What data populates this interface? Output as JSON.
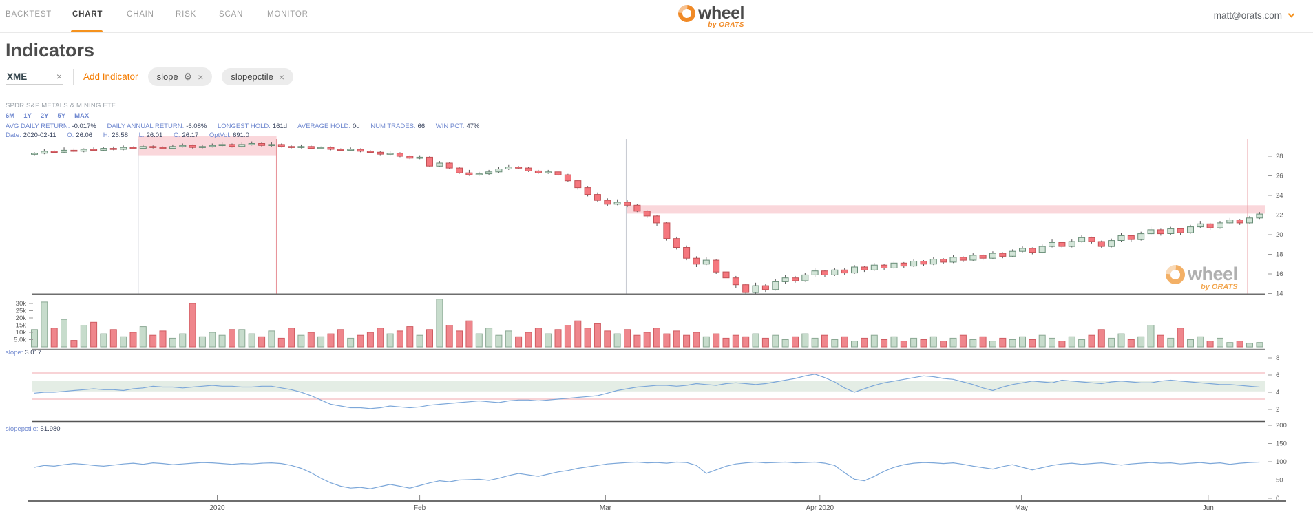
{
  "nav": {
    "tabs": [
      {
        "label": "BACKTEST"
      },
      {
        "label": "CHART"
      },
      {
        "label": "CHAIN"
      },
      {
        "label": "RISK"
      },
      {
        "label": "SCAN"
      },
      {
        "label": "MONITOR"
      }
    ],
    "active": "CHART"
  },
  "brand": {
    "name": "wheel",
    "byline": "by ORATS"
  },
  "account": {
    "email": "matt@orats.com"
  },
  "page": {
    "title": "Indicators"
  },
  "controls": {
    "symbol": "XME",
    "remove_symbol": "×",
    "add_indicator_label": "Add Indicator",
    "indicators": [
      {
        "label": "slope",
        "has_settings": true
      },
      {
        "label": "slopepctile",
        "has_settings": false
      }
    ],
    "gear_glyph": "⚙",
    "close_glyph": "×"
  },
  "instrument": {
    "name": "SPDR S&P METALS & MINING ETF"
  },
  "ranges": [
    "6M",
    "1Y",
    "2Y",
    "5Y",
    "MAX"
  ],
  "stats": [
    {
      "label": "AVG DAILY RETURN:",
      "value": "-0.017%"
    },
    {
      "label": "DAILY ANNUAL RETURN:",
      "value": "-6.08%"
    },
    {
      "label": "LONGEST HOLD:",
      "value": "161d"
    },
    {
      "label": "AVERAGE HOLD:",
      "value": "0d"
    },
    {
      "label": "NUM TRADES:",
      "value": "66"
    },
    {
      "label": "WIN PCT:",
      "value": "47%"
    }
  ],
  "dateline": [
    {
      "label": "Date:",
      "value": "2020-02-11"
    },
    {
      "label": "O:",
      "value": "26.06"
    },
    {
      "label": "H:",
      "value": "26.58"
    },
    {
      "label": "L:",
      "value": "26.01"
    },
    {
      "label": "C:",
      "value": "26.17"
    },
    {
      "label": "OptVol:",
      "value": "691.0"
    }
  ],
  "panels": {
    "slope_label": "slope:",
    "slope_value": "3.017",
    "pctile_label": "slopepctile:",
    "pctile_value": "51.980"
  },
  "colors": {
    "accent": "#f5921e",
    "candle_up_fill": "#d3e5d8",
    "candle_up_stroke": "#688d77",
    "candle_down_fill": "#f5777e",
    "candle_down_stroke": "#c25055",
    "wick": "#555555",
    "volume_up_fill": "#c7dccc",
    "volume_up_stroke": "#8aa893",
    "volume_down_fill": "#ef868c",
    "volume_down_stroke": "#d05c62",
    "line_blue": "#7ca7d9",
    "band_pink": "#f9cdd2",
    "marker_entry": "#c9ccd3",
    "marker_exit": "#e8959b",
    "slope_hline": "#f3b9be",
    "slope_band": "#dfeae0",
    "axis_text": "#606060",
    "axis_line": "#6e6e6e",
    "axis_line_light": "#8a8a8a"
  },
  "chart_data": {
    "type": "candlestick+volume+indicators",
    "title": "XME price with volume, slope and slopepctile indicators",
    "x_axis": {
      "tick_labels": [
        "2020",
        "Feb",
        "Mar",
        "Apr 2020",
        "May",
        "Jun"
      ],
      "tick_days": [
        18.5,
        39,
        57.8,
        79.5,
        99.9,
        118.8
      ]
    },
    "price_axis": {
      "ticks": [
        28,
        26,
        24,
        22,
        20,
        18,
        16,
        14
      ],
      "range": [
        13.9,
        30.2
      ]
    },
    "volume_axis": {
      "tick_labels": [
        "30k",
        "25k",
        "20k",
        "15k",
        "10k",
        "5.0k"
      ],
      "tick_values": [
        30,
        25,
        20,
        15,
        10,
        5
      ]
    },
    "slope_axis": {
      "ticks": [
        8,
        6,
        4,
        2
      ]
    },
    "pctile_axis": {
      "ticks": [
        200,
        150,
        100,
        50,
        0
      ]
    },
    "candles": [
      [
        28.2,
        28.4,
        28.1,
        28.3
      ],
      [
        28.3,
        28.7,
        28.2,
        28.5
      ],
      [
        28.5,
        28.6,
        28.3,
        28.4
      ],
      [
        28.4,
        28.9,
        28.3,
        28.6
      ],
      [
        28.6,
        28.8,
        28.4,
        28.5
      ],
      [
        28.5,
        28.8,
        28.4,
        28.7
      ],
      [
        28.7,
        28.9,
        28.5,
        28.6
      ],
      [
        28.6,
        28.9,
        28.5,
        28.8
      ],
      [
        28.8,
        29.0,
        28.6,
        28.7
      ],
      [
        28.7,
        29.1,
        28.6,
        28.9
      ],
      [
        28.9,
        29.0,
        28.7,
        28.8
      ],
      [
        28.8,
        29.2,
        28.7,
        29.0
      ],
      [
        29.0,
        29.1,
        28.8,
        28.9
      ],
      [
        28.9,
        29.0,
        28.7,
        28.8
      ],
      [
        28.8,
        29.2,
        28.7,
        29.0
      ],
      [
        29.0,
        29.3,
        28.9,
        29.1
      ],
      [
        29.1,
        29.2,
        28.8,
        28.9
      ],
      [
        28.9,
        29.2,
        28.8,
        29.0
      ],
      [
        29.0,
        29.3,
        28.9,
        29.1
      ],
      [
        29.1,
        29.4,
        29.0,
        29.2
      ],
      [
        29.2,
        29.3,
        28.9,
        29.0
      ],
      [
        29.0,
        29.4,
        28.9,
        29.2
      ],
      [
        29.2,
        29.5,
        29.1,
        29.3
      ],
      [
        29.3,
        29.4,
        29.0,
        29.1
      ],
      [
        29.1,
        29.4,
        29.0,
        29.2
      ],
      [
        29.2,
        29.3,
        28.9,
        29.0
      ],
      [
        29.0,
        29.1,
        28.8,
        28.9
      ],
      [
        28.9,
        29.2,
        28.8,
        29.0
      ],
      [
        29.0,
        29.1,
        28.7,
        28.8
      ],
      [
        28.8,
        29.0,
        28.7,
        28.9
      ],
      [
        28.9,
        29.0,
        28.6,
        28.7
      ],
      [
        28.7,
        28.8,
        28.5,
        28.6
      ],
      [
        28.6,
        28.9,
        28.5,
        28.7
      ],
      [
        28.7,
        28.8,
        28.4,
        28.5
      ],
      [
        28.5,
        28.6,
        28.3,
        28.4
      ],
      [
        28.4,
        28.5,
        28.1,
        28.2
      ],
      [
        28.2,
        28.5,
        28.1,
        28.3
      ],
      [
        28.3,
        28.4,
        27.9,
        28.0
      ],
      [
        28.0,
        28.1,
        27.7,
        27.8
      ],
      [
        27.8,
        28.1,
        27.7,
        27.9
      ],
      [
        27.9,
        28.0,
        26.9,
        27.0
      ],
      [
        27.0,
        27.5,
        26.9,
        27.3
      ],
      [
        27.3,
        27.4,
        26.7,
        26.8
      ],
      [
        26.8,
        26.9,
        26.2,
        26.3
      ],
      [
        26.3,
        26.6,
        26.0,
        26.1
      ],
      [
        26.1,
        26.4,
        26.0,
        26.2
      ],
      [
        26.2,
        26.6,
        26.1,
        26.4
      ],
      [
        26.4,
        26.9,
        26.3,
        26.7
      ],
      [
        26.7,
        27.1,
        26.6,
        26.9
      ],
      [
        26.9,
        27.0,
        26.7,
        26.8
      ],
      [
        26.8,
        26.9,
        26.4,
        26.5
      ],
      [
        26.5,
        26.6,
        26.2,
        26.3
      ],
      [
        26.3,
        26.6,
        26.2,
        26.4
      ],
      [
        26.4,
        26.5,
        26.0,
        26.1
      ],
      [
        26.1,
        26.2,
        25.4,
        25.5
      ],
      [
        25.5,
        25.6,
        24.6,
        24.8
      ],
      [
        24.8,
        24.9,
        23.9,
        24.1
      ],
      [
        24.1,
        24.3,
        23.3,
        23.5
      ],
      [
        23.5,
        23.7,
        22.9,
        23.1
      ],
      [
        23.1,
        23.6,
        23.0,
        23.3
      ],
      [
        23.3,
        23.5,
        22.8,
        23.0
      ],
      [
        23.0,
        23.1,
        22.3,
        22.4
      ],
      [
        22.4,
        22.5,
        21.7,
        21.9
      ],
      [
        21.9,
        22.0,
        20.9,
        21.2
      ],
      [
        21.2,
        21.3,
        19.4,
        19.6
      ],
      [
        19.6,
        19.8,
        18.5,
        18.7
      ],
      [
        18.7,
        18.9,
        17.4,
        17.6
      ],
      [
        17.6,
        17.8,
        16.7,
        17.0
      ],
      [
        17.0,
        17.7,
        16.9,
        17.4
      ],
      [
        17.4,
        17.5,
        16.0,
        16.2
      ],
      [
        16.2,
        16.4,
        15.3,
        15.6
      ],
      [
        15.6,
        15.8,
        14.6,
        14.9
      ],
      [
        14.9,
        15.0,
        13.9,
        14.1
      ],
      [
        14.1,
        15.1,
        13.9,
        14.8
      ],
      [
        14.8,
        15.0,
        14.1,
        14.4
      ],
      [
        14.4,
        15.5,
        14.3,
        15.2
      ],
      [
        15.2,
        15.9,
        15.0,
        15.6
      ],
      [
        15.6,
        15.8,
        15.1,
        15.3
      ],
      [
        15.3,
        16.1,
        15.2,
        15.9
      ],
      [
        15.9,
        16.6,
        15.7,
        16.3
      ],
      [
        16.3,
        16.4,
        15.7,
        15.9
      ],
      [
        15.9,
        16.6,
        15.8,
        16.4
      ],
      [
        16.4,
        16.6,
        15.9,
        16.1
      ],
      [
        16.1,
        16.9,
        16.0,
        16.7
      ],
      [
        16.7,
        16.8,
        16.2,
        16.4
      ],
      [
        16.4,
        17.1,
        16.3,
        16.9
      ],
      [
        16.9,
        17.0,
        16.4,
        16.6
      ],
      [
        16.6,
        17.3,
        16.5,
        17.1
      ],
      [
        17.1,
        17.2,
        16.6,
        16.8
      ],
      [
        16.8,
        17.5,
        16.7,
        17.3
      ],
      [
        17.3,
        17.4,
        16.8,
        17.0
      ],
      [
        17.0,
        17.7,
        16.9,
        17.5
      ],
      [
        17.5,
        17.6,
        17.0,
        17.2
      ],
      [
        17.2,
        17.9,
        17.1,
        17.7
      ],
      [
        17.7,
        17.8,
        17.2,
        17.4
      ],
      [
        17.4,
        18.1,
        17.3,
        17.9
      ],
      [
        17.9,
        18.0,
        17.4,
        17.6
      ],
      [
        17.6,
        18.3,
        17.5,
        18.1
      ],
      [
        18.1,
        18.2,
        17.6,
        17.8
      ],
      [
        17.8,
        18.5,
        17.7,
        18.3
      ],
      [
        18.3,
        18.8,
        18.2,
        18.6
      ],
      [
        18.6,
        18.7,
        18.0,
        18.2
      ],
      [
        18.2,
        19.0,
        18.1,
        18.8
      ],
      [
        18.8,
        19.5,
        18.7,
        19.2
      ],
      [
        19.2,
        19.3,
        18.6,
        18.8
      ],
      [
        18.8,
        19.5,
        18.7,
        19.3
      ],
      [
        19.3,
        20.0,
        19.2,
        19.7
      ],
      [
        19.7,
        19.8,
        19.1,
        19.3
      ],
      [
        19.3,
        19.4,
        18.6,
        18.8
      ],
      [
        18.8,
        19.6,
        18.7,
        19.4
      ],
      [
        19.4,
        20.2,
        19.3,
        19.9
      ],
      [
        19.9,
        20.0,
        19.3,
        19.5
      ],
      [
        19.5,
        20.3,
        19.4,
        20.1
      ],
      [
        20.1,
        20.8,
        20.0,
        20.5
      ],
      [
        20.5,
        20.6,
        19.9,
        20.1
      ],
      [
        20.1,
        20.8,
        20.0,
        20.6
      ],
      [
        20.6,
        20.7,
        20.0,
        20.2
      ],
      [
        20.2,
        21.0,
        20.1,
        20.8
      ],
      [
        20.8,
        21.4,
        20.7,
        21.1
      ],
      [
        21.1,
        21.2,
        20.5,
        20.7
      ],
      [
        20.7,
        21.4,
        20.6,
        21.2
      ],
      [
        21.2,
        21.7,
        21.1,
        21.5
      ],
      [
        21.5,
        21.6,
        21.0,
        21.2
      ],
      [
        21.2,
        21.9,
        21.1,
        21.7
      ],
      [
        21.7,
        22.3,
        21.6,
        22.1
      ]
    ],
    "volumes": [
      12,
      31,
      13,
      19,
      4.5,
      15,
      17,
      9,
      12,
      7,
      10,
      14,
      8,
      11,
      6,
      9,
      30,
      7,
      10,
      8,
      12,
      12,
      9,
      7,
      11,
      6,
      13,
      8,
      10,
      7,
      9,
      12,
      6,
      8,
      10,
      13,
      9,
      11,
      14,
      8,
      12,
      33,
      15,
      11,
      18,
      9,
      13,
      8,
      11,
      7,
      10,
      13,
      9,
      12,
      15,
      18,
      13,
      16,
      11,
      9,
      12,
      8,
      10,
      13,
      9,
      11,
      8,
      10,
      7,
      9,
      6,
      8,
      7,
      9,
      6,
      8,
      5,
      7,
      9,
      6,
      8,
      5,
      7,
      4,
      6,
      8,
      5,
      7,
      4,
      6,
      5,
      7,
      4,
      6,
      8,
      5,
      7,
      4,
      6,
      5,
      7,
      5,
      8,
      6,
      4,
      7,
      5,
      8,
      12,
      6,
      9,
      5,
      7,
      15,
      8,
      6,
      13,
      5,
      7,
      4,
      6,
      3,
      4,
      2.5,
      3
    ],
    "slope": [
      3.9,
      4.0,
      4.0,
      4.1,
      4.2,
      4.3,
      4.4,
      4.3,
      4.3,
      4.2,
      4.4,
      4.5,
      4.7,
      4.6,
      4.6,
      4.5,
      4.6,
      4.7,
      4.8,
      4.7,
      4.7,
      4.6,
      4.6,
      4.7,
      4.7,
      4.5,
      4.3,
      4.0,
      3.6,
      3.1,
      2.6,
      2.4,
      2.2,
      2.2,
      2.1,
      2.2,
      2.4,
      2.3,
      2.2,
      2.3,
      2.5,
      2.6,
      2.7,
      2.8,
      2.9,
      3.0,
      2.9,
      2.8,
      3.0,
      3.1,
      3.1,
      3.0,
      3.1,
      3.2,
      3.3,
      3.4,
      3.5,
      3.6,
      3.9,
      4.2,
      4.4,
      4.6,
      4.7,
      4.8,
      4.8,
      4.7,
      4.8,
      5.0,
      4.9,
      4.8,
      5.0,
      5.1,
      5.0,
      4.9,
      5.0,
      5.2,
      5.4,
      5.6,
      5.9,
      6.1,
      5.7,
      5.2,
      4.5,
      4.0,
      4.4,
      4.8,
      5.1,
      5.3,
      5.5,
      5.7,
      5.9,
      5.8,
      5.6,
      5.5,
      5.2,
      4.9,
      4.5,
      4.2,
      4.6,
      4.9,
      5.1,
      5.3,
      5.2,
      5.1,
      5.4,
      5.3,
      5.2,
      5.1,
      5.0,
      5.2,
      5.3,
      5.2,
      5.1,
      5.1,
      5.3,
      5.4,
      5.3,
      5.2,
      5.1,
      5.0,
      4.9,
      4.9,
      4.8,
      4.7,
      4.6
    ],
    "slopepctile": [
      85,
      90,
      88,
      92,
      95,
      93,
      90,
      88,
      91,
      94,
      96,
      93,
      97,
      95,
      92,
      94,
      96,
      98,
      97,
      95,
      93,
      95,
      94,
      96,
      97,
      95,
      90,
      82,
      70,
      55,
      42,
      33,
      28,
      30,
      26,
      32,
      38,
      33,
      28,
      35,
      42,
      48,
      45,
      50,
      51,
      52,
      49,
      55,
      62,
      68,
      64,
      60,
      66,
      72,
      76,
      82,
      86,
      90,
      94,
      96,
      98,
      99,
      97,
      98,
      96,
      99,
      98,
      90,
      68,
      78,
      88,
      94,
      97,
      99,
      97,
      98,
      99,
      97,
      98,
      99,
      96,
      90,
      70,
      52,
      48,
      60,
      74,
      85,
      92,
      96,
      98,
      97,
      95,
      97,
      93,
      88,
      84,
      80,
      87,
      92,
      85,
      78,
      84,
      90,
      94,
      96,
      93,
      95,
      97,
      94,
      91,
      94,
      96,
      98,
      96,
      97,
      94,
      96,
      98,
      95,
      97,
      93,
      96,
      98,
      99
    ],
    "trade_markers": [
      {
        "day": 10.5,
        "type": "entry"
      },
      {
        "day": 24.5,
        "type": "exit"
      },
      {
        "day": 59.9,
        "type": "entry"
      },
      {
        "day": 122.8,
        "type": "exit"
      }
    ],
    "highlight_bands": [
      {
        "from_day": 10.5,
        "to_day": 24.5,
        "price_top": 30.1,
        "price_bottom": 28.1
      },
      {
        "from_day": 59.9,
        "to_day": 125,
        "price_top": 23.0,
        "price_bottom": 22.15
      }
    ],
    "slope_overlays": {
      "hlines": [
        6.24,
        3.2
      ],
      "band_top": 5.3,
      "band_bottom": 4.1
    }
  }
}
